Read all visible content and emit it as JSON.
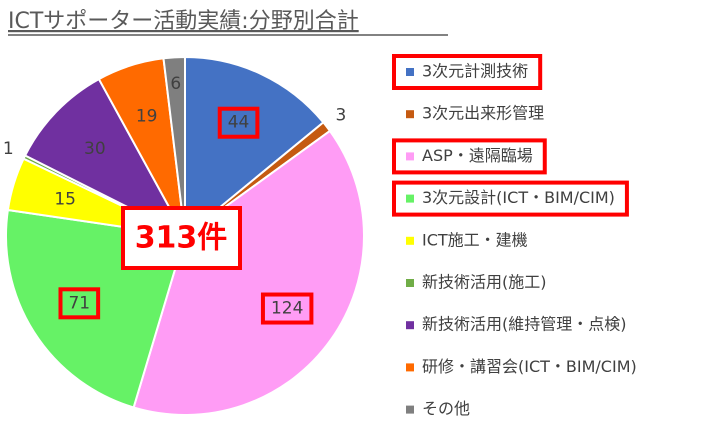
{
  "chart_data": {
    "type": "pie",
    "title": "ICTサポーター活動実績:分野別合計",
    "annotation": "313件",
    "categories": [
      "3次元計測技術",
      "3次元出来形管理",
      "ASP・遠隔臨場",
      "3次元設計(ICT・BIM/CIM)",
      "ICT施工・建機",
      "新技術活用(施工)",
      "新技術活用(維持管理・点検)",
      "研修・講習会(ICT・BIM/CIM)",
      "その他"
    ],
    "values": [
      44,
      3,
      124,
      71,
      15,
      1,
      30,
      19,
      6
    ],
    "colors": [
      "#4472c4",
      "#c55a11",
      "#ff9cf5",
      "#66f266",
      "#ffff00",
      "#70ad47",
      "#7030a0",
      "#ff6a00",
      "#7f7f7f"
    ]
  }
}
